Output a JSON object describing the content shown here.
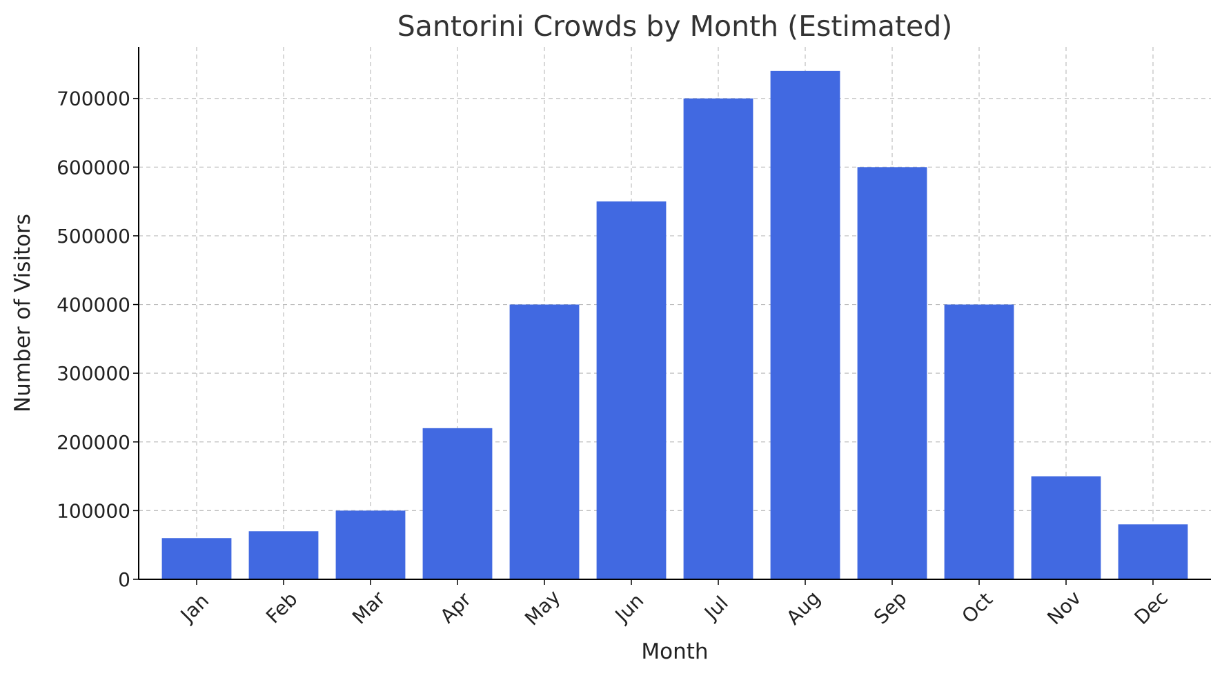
{
  "chart_data": {
    "type": "bar",
    "title": "Santorini Crowds by Month (Estimated)",
    "xlabel": "Month",
    "ylabel": "Number of Visitors",
    "categories": [
      "Jan",
      "Feb",
      "Mar",
      "Apr",
      "May",
      "Jun",
      "Jul",
      "Aug",
      "Sep",
      "Oct",
      "Nov",
      "Dec"
    ],
    "values": [
      60000,
      70000,
      100000,
      220000,
      400000,
      550000,
      700000,
      740000,
      600000,
      400000,
      150000,
      80000
    ],
    "yticks": [
      "0",
      "100000",
      "200000",
      "300000",
      "400000",
      "500000",
      "600000",
      "700000"
    ],
    "ytick_values": [
      0,
      100000,
      200000,
      300000,
      400000,
      500000,
      600000,
      700000
    ],
    "ylim": [
      0,
      775000
    ],
    "grid": true,
    "bar_color": "#4169e1",
    "xtick_rotation": "45deg"
  }
}
